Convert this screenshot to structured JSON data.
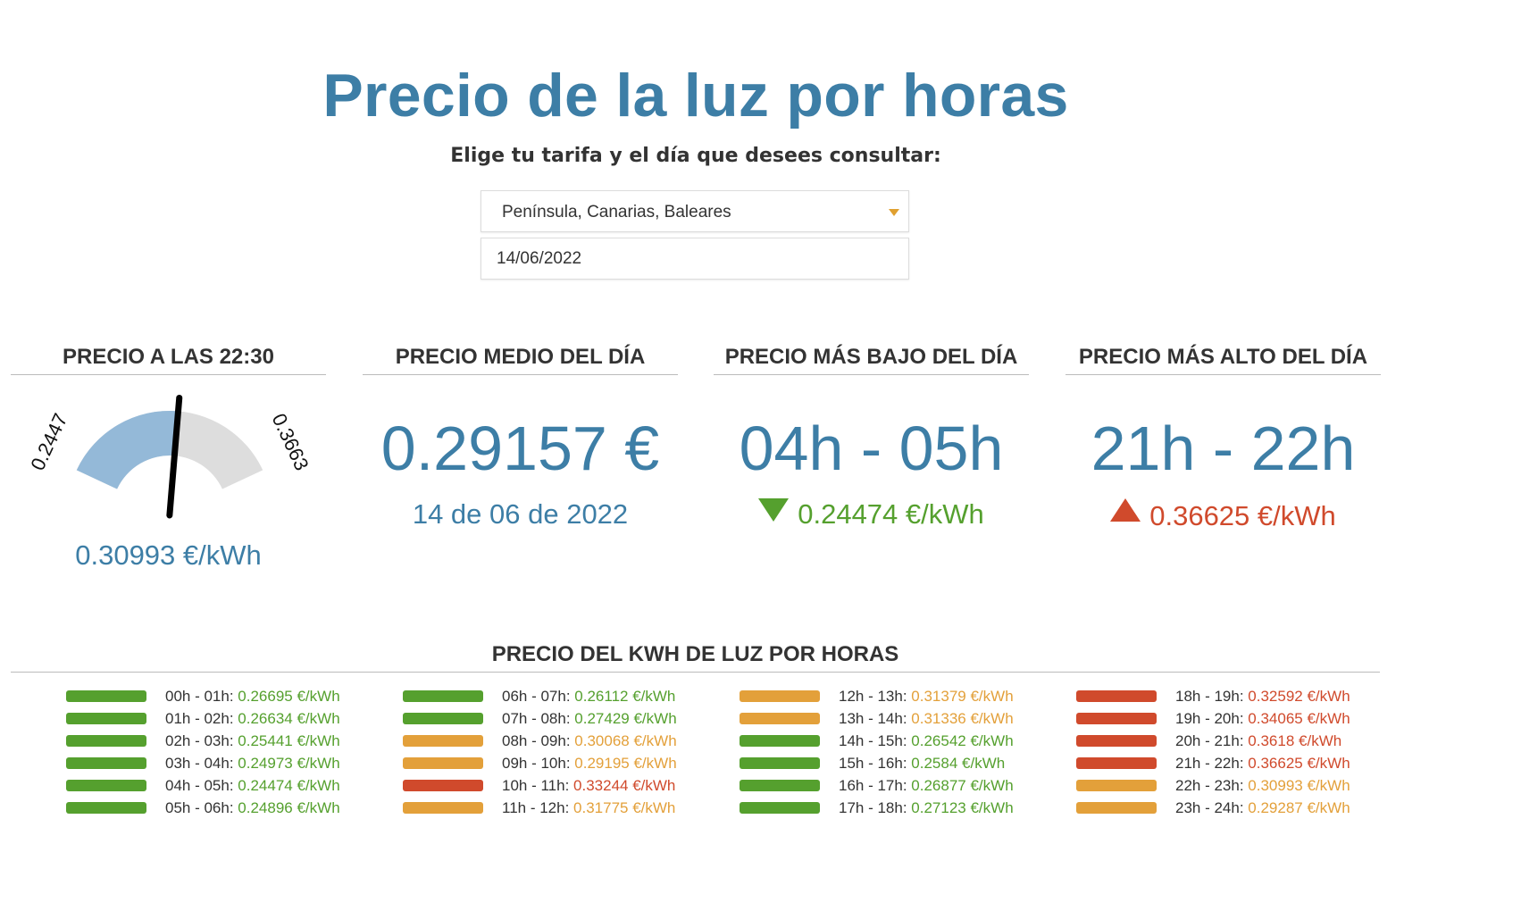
{
  "header": {
    "title": "Precio de la luz por horas",
    "subtitle": "Elige tu tarifa y el día que desees consultar:"
  },
  "controls": {
    "tarifa": "Península, Canarias, Baleares",
    "fecha": "14/06/2022"
  },
  "colors": {
    "accent": "#3d7ea6",
    "green": "#55a02e",
    "orange": "#e3a03a",
    "red": "#d04a2c"
  },
  "cards": {
    "current": {
      "heading": "PRECIO A LAS 22:30",
      "gauge_min_label": "0.2447",
      "gauge_max_label": "0.3663",
      "gauge_min": 0.24474,
      "gauge_max": 0.36625,
      "gauge_value": 0.30993,
      "value_text": "0.30993 €/kWh"
    },
    "average": {
      "heading": "PRECIO MEDIO DEL DÍA",
      "value": "0.29157 €",
      "date": "14 de 06 de 2022"
    },
    "lowest": {
      "heading": "PRECIO MÁS BAJO DEL DÍA",
      "hours": "04h - 05h",
      "price": "0.24474 €/kWh"
    },
    "highest": {
      "heading": "PRECIO MÁS ALTO DEL DÍA",
      "hours": "21h - 22h",
      "price": "0.36625 €/kWh"
    }
  },
  "hourly": {
    "heading": "PRECIO DEL KWH DE LUZ POR HORAS",
    "columns": [
      [
        {
          "label": "00h - 01h:",
          "price": "0.26695 €/kWh",
          "level": "green"
        },
        {
          "label": "01h - 02h:",
          "price": "0.26634 €/kWh",
          "level": "green"
        },
        {
          "label": "02h - 03h:",
          "price": "0.25441 €/kWh",
          "level": "green"
        },
        {
          "label": "03h - 04h:",
          "price": "0.24973 €/kWh",
          "level": "green"
        },
        {
          "label": "04h - 05h:",
          "price": "0.24474 €/kWh",
          "level": "green"
        },
        {
          "label": "05h - 06h:",
          "price": "0.24896 €/kWh",
          "level": "green"
        }
      ],
      [
        {
          "label": "06h - 07h:",
          "price": "0.26112 €/kWh",
          "level": "green"
        },
        {
          "label": "07h - 08h:",
          "price": "0.27429 €/kWh",
          "level": "green"
        },
        {
          "label": "08h - 09h:",
          "price": "0.30068 €/kWh",
          "level": "orange"
        },
        {
          "label": "09h - 10h:",
          "price": "0.29195 €/kWh",
          "level": "orange"
        },
        {
          "label": "10h - 11h:",
          "price": "0.33244 €/kWh",
          "level": "red"
        },
        {
          "label": "11h - 12h:",
          "price": "0.31775 €/kWh",
          "level": "orange"
        }
      ],
      [
        {
          "label": "12h - 13h:",
          "price": "0.31379 €/kWh",
          "level": "orange"
        },
        {
          "label": "13h - 14h:",
          "price": "0.31336 €/kWh",
          "level": "orange"
        },
        {
          "label": "14h - 15h:",
          "price": "0.26542 €/kWh",
          "level": "green"
        },
        {
          "label": "15h - 16h:",
          "price": "0.2584 €/kWh",
          "level": "green"
        },
        {
          "label": "16h - 17h:",
          "price": "0.26877 €/kWh",
          "level": "green"
        },
        {
          "label": "17h - 18h:",
          "price": "0.27123 €/kWh",
          "level": "green"
        }
      ],
      [
        {
          "label": "18h - 19h:",
          "price": "0.32592 €/kWh",
          "level": "red"
        },
        {
          "label": "19h - 20h:",
          "price": "0.34065 €/kWh",
          "level": "red"
        },
        {
          "label": "20h - 21h:",
          "price": "0.3618 €/kWh",
          "level": "red"
        },
        {
          "label": "21h - 22h:",
          "price": "0.36625 €/kWh",
          "level": "red"
        },
        {
          "label": "22h - 23h:",
          "price": "0.30993 €/kWh",
          "level": "orange"
        },
        {
          "label": "23h - 24h:",
          "price": "0.29287 €/kWh",
          "level": "orange"
        }
      ]
    ]
  }
}
